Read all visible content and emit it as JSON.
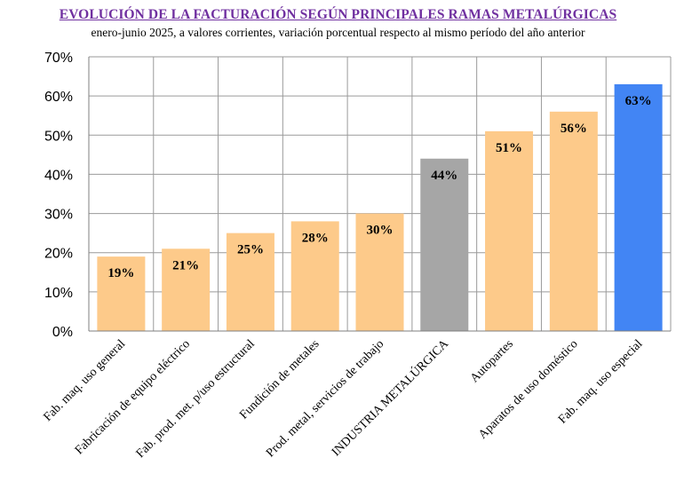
{
  "chart_data": {
    "type": "bar",
    "title": "EVOLUCIÓN DE LA FACTURACIÓN SEGÚN PRINCIPALES RAMAS METALÚRGICAS",
    "subtitle": "enero-junio 2025, a valores corrientes, variación porcentual respecto al mismo período del año anterior",
    "categories": [
      "Fab. maq. uso general",
      "Fabricación de equipo eléctrico",
      "Fab. prod. met. p/uso estructural",
      "Fundición de metales",
      "Prod. metal, servicios de trabajo",
      "INDUSTRIA METALÚRGICA",
      "Autopartes",
      "Aparatos de uso doméstico",
      "Fab. maq. uso especial"
    ],
    "values": [
      19,
      21,
      25,
      28,
      30,
      44,
      51,
      56,
      63
    ],
    "data_labels": [
      "19%",
      "21%",
      "25%",
      "28%",
      "30%",
      "44%",
      "51%",
      "56%",
      "63%"
    ],
    "bar_colors": [
      "#fdca8a",
      "#fdca8a",
      "#fdca8a",
      "#fdca8a",
      "#fdca8a",
      "#a6a6a6",
      "#fdca8a",
      "#fdca8a",
      "#4285f4"
    ],
    "y_ticks": [
      "0%",
      "10%",
      "20%",
      "30%",
      "40%",
      "50%",
      "60%",
      "70%"
    ],
    "ylim": [
      0,
      70
    ],
    "xlabel": "",
    "ylabel": "",
    "grid": true
  }
}
